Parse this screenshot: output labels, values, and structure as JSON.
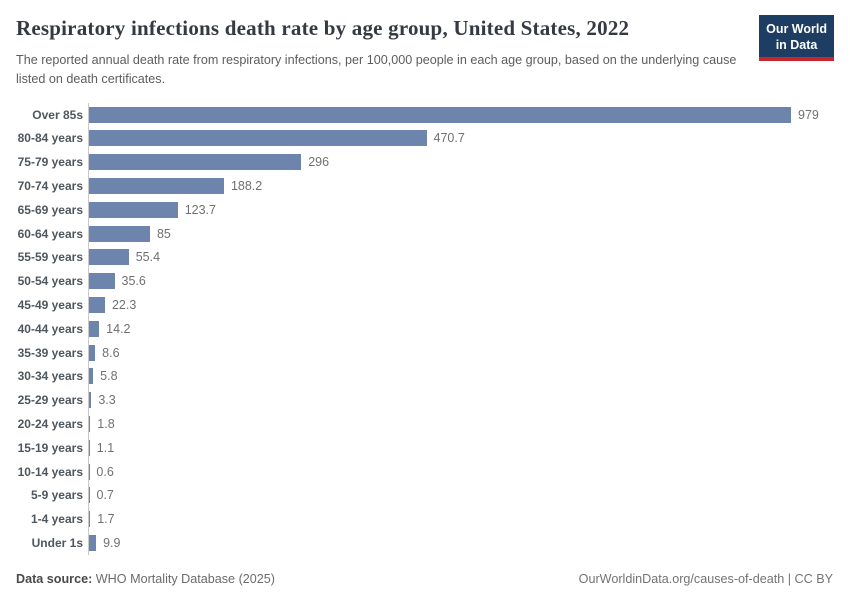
{
  "header": {
    "title": "Respiratory infections death rate by age group, United States, 2022",
    "subtitle": "The reported annual death rate from respiratory infections, per 100,000 people in each age group, based on the underlying cause listed on death certificates.",
    "logo_line1": "Our World",
    "logo_line2": "in Data"
  },
  "chart_data": {
    "type": "bar",
    "orientation": "horizontal",
    "title": "Respiratory infections death rate by age group, United States, 2022",
    "categories": [
      "Over 85s",
      "80-84 years",
      "75-79 years",
      "70-74 years",
      "65-69 years",
      "60-64 years",
      "55-59 years",
      "50-54 years",
      "45-49 years",
      "40-44 years",
      "35-39 years",
      "30-34 years",
      "25-29 years",
      "20-24 years",
      "15-19 years",
      "10-14 years",
      "5-9 years",
      "1-4 years",
      "Under 1s"
    ],
    "values": [
      979,
      470.7,
      296,
      188.2,
      123.7,
      85,
      55.4,
      35.6,
      22.3,
      14.2,
      8.6,
      5.8,
      3.3,
      1.8,
      1.1,
      0.6,
      0.7,
      1.7,
      9.9
    ],
    "xlabel": "",
    "ylabel": "",
    "xlim": [
      0,
      979
    ],
    "grid": false,
    "legend": "none",
    "value_labels_shown": true,
    "bar_color": "#6d84ad"
  },
  "footer": {
    "source_label": "Data source:",
    "source_value": "WHO Mortality Database (2025)",
    "attribution": "OurWorldinData.org/causes-of-death | CC BY"
  },
  "colors": {
    "bar": "#6d84ad",
    "logo_navy": "#1d3d63",
    "logo_red": "#c5272d",
    "axis_line": "#c9c9c9",
    "category_label": "#4e565e",
    "value_label": "#707070",
    "title_text": "#353a42",
    "subtitle_text": "#5d5d5d"
  }
}
